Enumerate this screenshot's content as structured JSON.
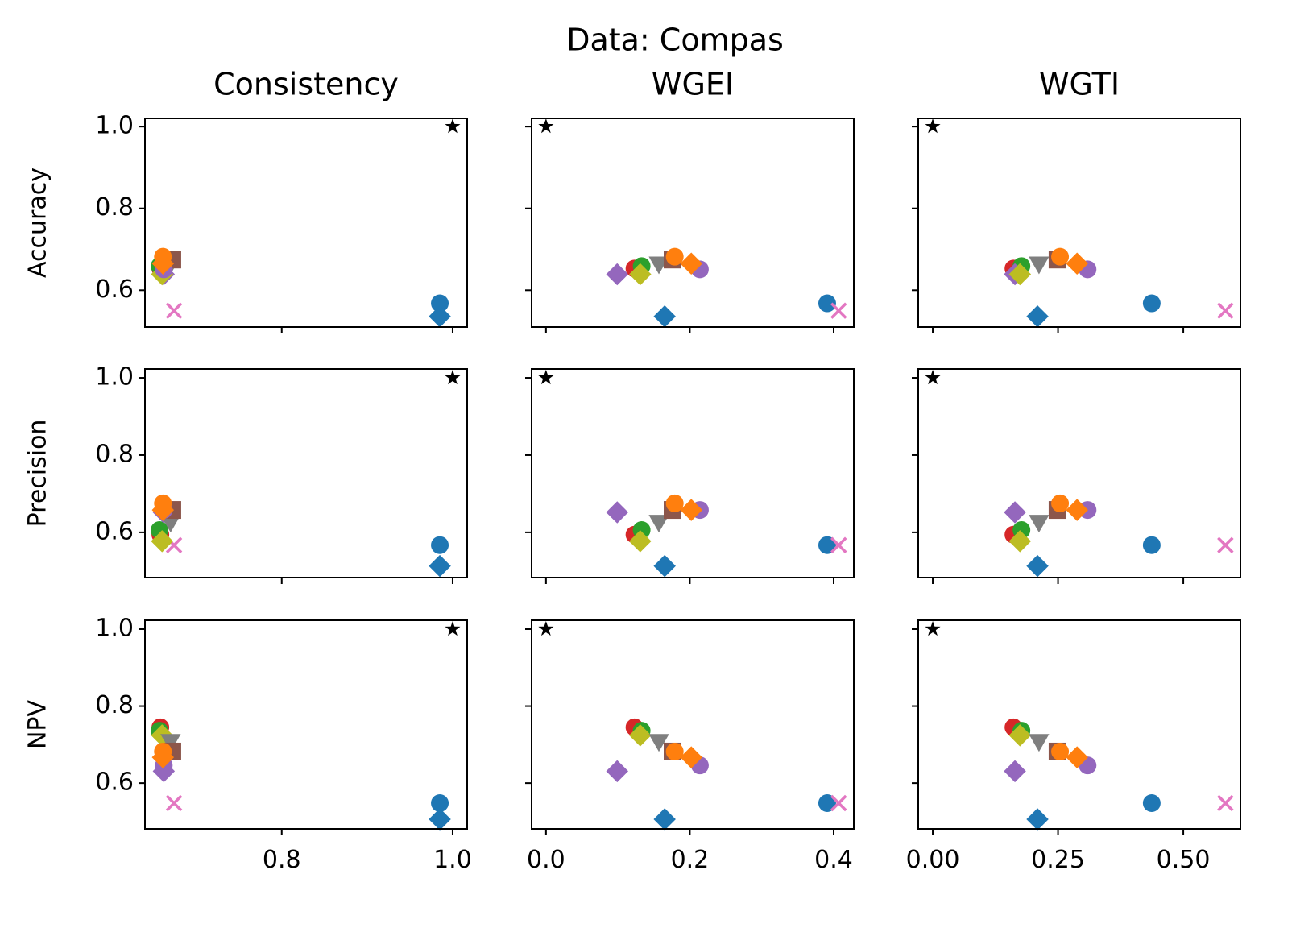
{
  "suptitle": "Data: Compas",
  "chart_data": [
    {
      "type": "scatter",
      "title": "Consistency",
      "ylabel": "Accuracy",
      "xlim": [
        0.64,
        1.017
      ],
      "ylim": [
        0.51,
        1.02
      ],
      "xticks": [
        0.8,
        {
          "value": 1,
          "label": "1.0"
        }
      ],
      "yticks": [
        0.6,
        0.8,
        {
          "value": 1,
          "label": "1.0"
        }
      ],
      "xticklabels": false,
      "yticklabels": true,
      "x": [
        1,
        0.985,
        0.985,
        0.674,
        0.658,
        0.657,
        0.662,
        0.66,
        0.67,
        0.672,
        0.662,
        0.661,
        0.661
      ],
      "values": [
        1,
        0.568,
        0.536,
        0.55,
        0.653,
        0.659,
        0.639,
        0.639,
        0.665,
        0.675,
        0.651,
        0.682,
        0.665
      ],
      "colors": [
        "#000000",
        "#1f77b4",
        "#1f77b4",
        "#e377c2",
        "#d62728",
        "#2ca02c",
        "#9467bd",
        "#bcbd22",
        "#7f7f7f",
        "#8c564b",
        "#9467bd",
        "#ff7f0e",
        "#ff7f0e"
      ],
      "markers": [
        "*",
        "o",
        "D",
        "x",
        "o",
        "o",
        "D",
        "D",
        "v",
        "s",
        "o",
        "o",
        "D"
      ]
    },
    {
      "type": "scatter",
      "title": "WGEI",
      "xlim": [
        -0.02,
        0.428
      ],
      "ylim": [
        0.51,
        1.02
      ],
      "xticks": [
        {
          "value": 0,
          "label": "0.0"
        },
        0.2,
        0.4
      ],
      "yticks": [
        0.6,
        0.8,
        {
          "value": 1,
          "label": "1.0"
        }
      ],
      "xticklabels": false,
      "yticklabels": false,
      "x": [
        0,
        0.391,
        0.165,
        0.407,
        0.123,
        0.133,
        0.099,
        0.131,
        0.157,
        0.176,
        0.214,
        0.179,
        0.202
      ],
      "values": [
        1,
        0.568,
        0.536,
        0.55,
        0.653,
        0.659,
        0.639,
        0.639,
        0.665,
        0.675,
        0.651,
        0.682,
        0.665
      ],
      "colors": [
        "#000000",
        "#1f77b4",
        "#1f77b4",
        "#e377c2",
        "#d62728",
        "#2ca02c",
        "#9467bd",
        "#bcbd22",
        "#7f7f7f",
        "#8c564b",
        "#9467bd",
        "#ff7f0e",
        "#ff7f0e"
      ],
      "markers": [
        "*",
        "o",
        "D",
        "x",
        "o",
        "o",
        "D",
        "D",
        "v",
        "s",
        "o",
        "o",
        "D"
      ]
    },
    {
      "type": "scatter",
      "title": "WGTI",
      "xlim": [
        -0.029,
        0.614
      ],
      "ylim": [
        0.51,
        1.02
      ],
      "xticks": [
        {
          "value": 0,
          "label": "0.00"
        },
        0.25,
        {
          "value": 0.5,
          "label": "0.50"
        }
      ],
      "yticks": [
        0.6,
        0.8,
        {
          "value": 1,
          "label": "1.0"
        }
      ],
      "xticklabels": false,
      "yticklabels": false,
      "x": [
        0,
        0.437,
        0.209,
        0.584,
        0.161,
        0.177,
        0.164,
        0.174,
        0.212,
        0.249,
        0.309,
        0.254,
        0.288
      ],
      "values": [
        1,
        0.568,
        0.536,
        0.55,
        0.653,
        0.659,
        0.639,
        0.639,
        0.665,
        0.675,
        0.651,
        0.682,
        0.665
      ],
      "colors": [
        "#000000",
        "#1f77b4",
        "#1f77b4",
        "#e377c2",
        "#d62728",
        "#2ca02c",
        "#9467bd",
        "#bcbd22",
        "#7f7f7f",
        "#8c564b",
        "#9467bd",
        "#ff7f0e",
        "#ff7f0e"
      ],
      "markers": [
        "*",
        "o",
        "D",
        "x",
        "o",
        "o",
        "D",
        "D",
        "v",
        "s",
        "o",
        "o",
        "D"
      ]
    },
    {
      "type": "scatter",
      "ylabel": "Precision",
      "xlim": [
        0.64,
        1.017
      ],
      "ylim": [
        0.483,
        1.023
      ],
      "xticks": [
        0.8,
        {
          "value": 1,
          "label": "1.0"
        }
      ],
      "yticks": [
        0.6,
        0.8,
        {
          "value": 1,
          "label": "1.0"
        }
      ],
      "xticklabels": false,
      "yticklabels": true,
      "x": [
        1,
        0.985,
        0.985,
        0.674,
        0.658,
        0.657,
        0.662,
        0.66,
        0.67,
        0.672,
        0.662,
        0.661,
        0.661
      ],
      "values": [
        1,
        0.567,
        0.513,
        0.567,
        0.594,
        0.606,
        0.652,
        0.577,
        0.627,
        0.658,
        0.658,
        0.675,
        0.658
      ],
      "colors": [
        "#000000",
        "#1f77b4",
        "#1f77b4",
        "#e377c2",
        "#d62728",
        "#2ca02c",
        "#9467bd",
        "#bcbd22",
        "#7f7f7f",
        "#8c564b",
        "#9467bd",
        "#ff7f0e",
        "#ff7f0e"
      ],
      "markers": [
        "*",
        "o",
        "D",
        "x",
        "o",
        "o",
        "D",
        "D",
        "v",
        "s",
        "o",
        "o",
        "D"
      ]
    },
    {
      "type": "scatter",
      "xlim": [
        -0.02,
        0.428
      ],
      "ylim": [
        0.483,
        1.023
      ],
      "xticks": [
        {
          "value": 0,
          "label": "0.0"
        },
        0.2,
        0.4
      ],
      "yticks": [
        0.6,
        0.8,
        {
          "value": 1,
          "label": "1.0"
        }
      ],
      "xticklabels": false,
      "yticklabels": false,
      "x": [
        0,
        0.391,
        0.165,
        0.407,
        0.123,
        0.133,
        0.099,
        0.131,
        0.157,
        0.176,
        0.214,
        0.179,
        0.202
      ],
      "values": [
        1,
        0.567,
        0.513,
        0.567,
        0.594,
        0.606,
        0.652,
        0.577,
        0.627,
        0.658,
        0.658,
        0.675,
        0.658
      ],
      "colors": [
        "#000000",
        "#1f77b4",
        "#1f77b4",
        "#e377c2",
        "#d62728",
        "#2ca02c",
        "#9467bd",
        "#bcbd22",
        "#7f7f7f",
        "#8c564b",
        "#9467bd",
        "#ff7f0e",
        "#ff7f0e"
      ],
      "markers": [
        "*",
        "o",
        "D",
        "x",
        "o",
        "o",
        "D",
        "D",
        "v",
        "s",
        "o",
        "o",
        "D"
      ]
    },
    {
      "type": "scatter",
      "xlim": [
        -0.029,
        0.614
      ],
      "ylim": [
        0.483,
        1.023
      ],
      "xticks": [
        {
          "value": 0,
          "label": "0.00"
        },
        0.25,
        {
          "value": 0.5,
          "label": "0.50"
        }
      ],
      "yticks": [
        0.6,
        0.8,
        {
          "value": 1,
          "label": "1.0"
        }
      ],
      "xticklabels": false,
      "yticklabels": false,
      "x": [
        0,
        0.437,
        0.209,
        0.584,
        0.161,
        0.177,
        0.164,
        0.174,
        0.212,
        0.249,
        0.309,
        0.254,
        0.288
      ],
      "values": [
        1,
        0.567,
        0.513,
        0.567,
        0.594,
        0.606,
        0.652,
        0.577,
        0.627,
        0.658,
        0.658,
        0.675,
        0.658
      ],
      "colors": [
        "#000000",
        "#1f77b4",
        "#1f77b4",
        "#e377c2",
        "#d62728",
        "#2ca02c",
        "#9467bd",
        "#bcbd22",
        "#7f7f7f",
        "#8c564b",
        "#9467bd",
        "#ff7f0e",
        "#ff7f0e"
      ],
      "markers": [
        "*",
        "o",
        "D",
        "x",
        "o",
        "o",
        "D",
        "D",
        "v",
        "s",
        "o",
        "o",
        "D"
      ]
    },
    {
      "type": "scatter",
      "ylabel": "NPV",
      "xlim": [
        0.64,
        1.017
      ],
      "ylim": [
        0.481,
        1.023
      ],
      "xticks": [
        0.8,
        {
          "value": 1,
          "label": "1.0"
        }
      ],
      "yticks": [
        0.6,
        0.8,
        {
          "value": 1,
          "label": "1.0"
        }
      ],
      "xticklabels": true,
      "yticklabels": true,
      "x": [
        1,
        0.985,
        0.985,
        0.674,
        0.658,
        0.657,
        0.662,
        0.66,
        0.67,
        0.672,
        0.662,
        0.661,
        0.661
      ],
      "values": [
        1,
        0.548,
        0.506,
        0.548,
        0.745,
        0.736,
        0.631,
        0.724,
        0.709,
        0.682,
        0.646,
        0.682,
        0.667
      ],
      "colors": [
        "#000000",
        "#1f77b4",
        "#1f77b4",
        "#e377c2",
        "#d62728",
        "#2ca02c",
        "#9467bd",
        "#bcbd22",
        "#7f7f7f",
        "#8c564b",
        "#9467bd",
        "#ff7f0e",
        "#ff7f0e"
      ],
      "markers": [
        "*",
        "o",
        "D",
        "x",
        "o",
        "o",
        "D",
        "D",
        "v",
        "s",
        "o",
        "o",
        "D"
      ]
    },
    {
      "type": "scatter",
      "xlim": [
        -0.02,
        0.428
      ],
      "ylim": [
        0.481,
        1.023
      ],
      "xticks": [
        {
          "value": 0,
          "label": "0.0"
        },
        0.2,
        0.4
      ],
      "yticks": [
        0.6,
        0.8,
        {
          "value": 1,
          "label": "1.0"
        }
      ],
      "xticklabels": true,
      "yticklabels": false,
      "x": [
        0,
        0.391,
        0.165,
        0.407,
        0.123,
        0.133,
        0.099,
        0.131,
        0.157,
        0.176,
        0.214,
        0.179,
        0.202
      ],
      "values": [
        1,
        0.548,
        0.506,
        0.548,
        0.745,
        0.736,
        0.631,
        0.724,
        0.709,
        0.682,
        0.646,
        0.682,
        0.667
      ],
      "colors": [
        "#000000",
        "#1f77b4",
        "#1f77b4",
        "#e377c2",
        "#d62728",
        "#2ca02c",
        "#9467bd",
        "#bcbd22",
        "#7f7f7f",
        "#8c564b",
        "#9467bd",
        "#ff7f0e",
        "#ff7f0e"
      ],
      "markers": [
        "*",
        "o",
        "D",
        "x",
        "o",
        "o",
        "D",
        "D",
        "v",
        "s",
        "o",
        "o",
        "D"
      ]
    },
    {
      "type": "scatter",
      "xlim": [
        -0.029,
        0.614
      ],
      "ylim": [
        0.481,
        1.023
      ],
      "xticks": [
        {
          "value": 0,
          "label": "0.00"
        },
        0.25,
        {
          "value": 0.5,
          "label": "0.50"
        }
      ],
      "yticks": [
        0.6,
        0.8,
        {
          "value": 1,
          "label": "1.0"
        }
      ],
      "xticklabels": true,
      "yticklabels": false,
      "x": [
        0,
        0.437,
        0.209,
        0.584,
        0.161,
        0.177,
        0.164,
        0.174,
        0.212,
        0.249,
        0.309,
        0.254,
        0.288
      ],
      "values": [
        1,
        0.548,
        0.506,
        0.548,
        0.745,
        0.736,
        0.631,
        0.724,
        0.709,
        0.682,
        0.646,
        0.682,
        0.667
      ],
      "colors": [
        "#000000",
        "#1f77b4",
        "#1f77b4",
        "#e377c2",
        "#d62728",
        "#2ca02c",
        "#9467bd",
        "#bcbd22",
        "#7f7f7f",
        "#8c564b",
        "#9467bd",
        "#ff7f0e",
        "#ff7f0e"
      ],
      "markers": [
        "*",
        "o",
        "D",
        "x",
        "o",
        "o",
        "D",
        "D",
        "v",
        "s",
        "o",
        "o",
        "D"
      ]
    }
  ]
}
